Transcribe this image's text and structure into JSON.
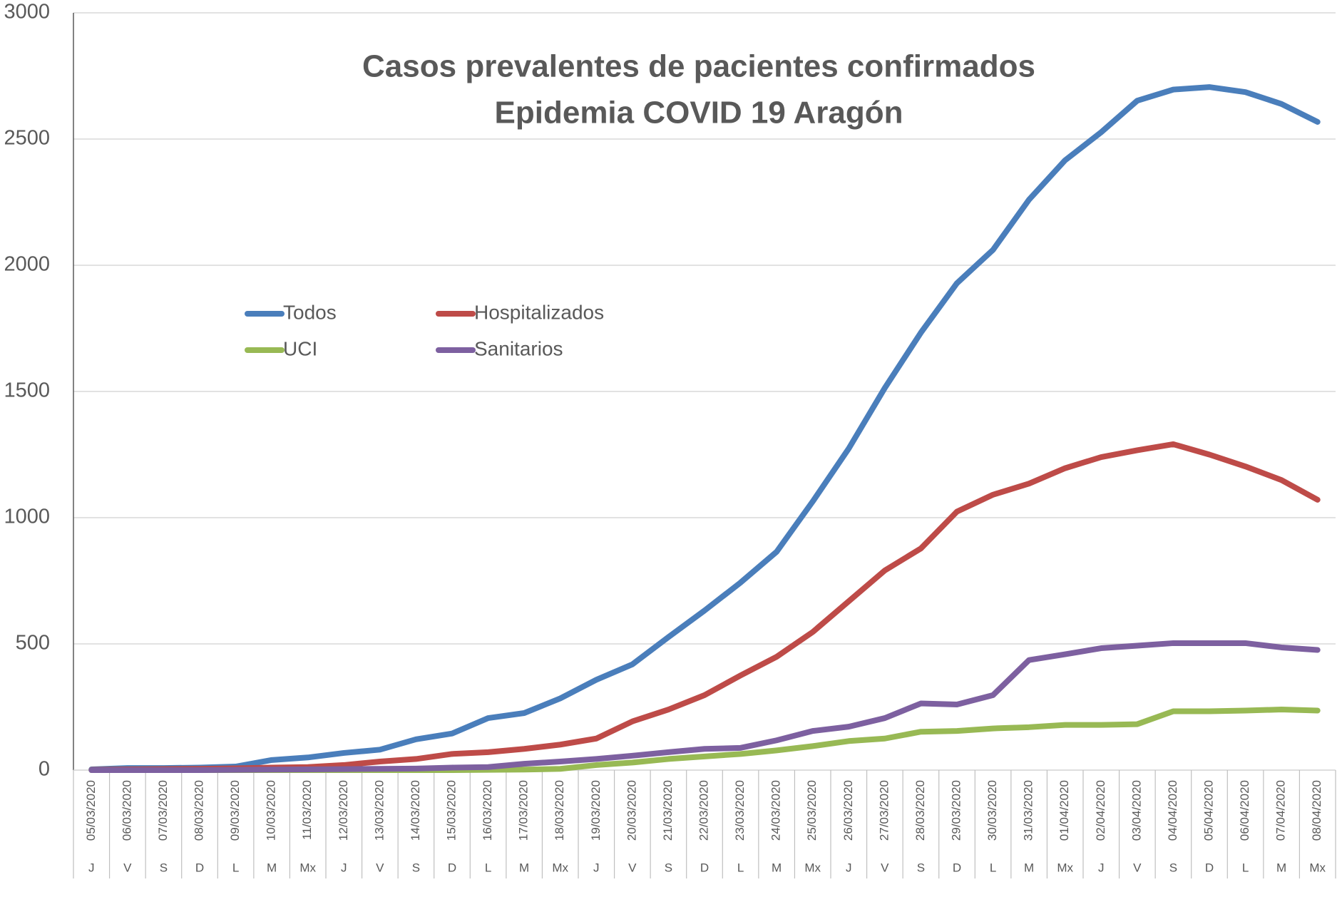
{
  "chart_data": {
    "type": "line",
    "title": "Casos prevalentes de pacientes confirmados",
    "subtitle": "Epidemia COVID 19 Aragón",
    "categories": [
      "05/03/2020",
      "06/03/2020",
      "07/03/2020",
      "08/03/2020",
      "09/03/2020",
      "10/03/2020",
      "11/03/2020",
      "12/03/2020",
      "13/03/2020",
      "14/03/2020",
      "15/03/2020",
      "16/03/2020",
      "17/03/2020",
      "18/03/2020",
      "19/03/2020",
      "20/03/2020",
      "21/03/2020",
      "22/03/2020",
      "23/03/2020",
      "24/03/2020",
      "25/03/2020",
      "26/03/2020",
      "27/03/2020",
      "28/03/2020",
      "29/03/2020",
      "30/03/2020",
      "31/03/2020",
      "01/04/2020",
      "02/04/2020",
      "03/04/2020",
      "04/04/2020",
      "05/04/2020",
      "06/04/2020",
      "07/04/2020",
      "08/04/2020"
    ],
    "weekdays": [
      "J",
      "V",
      "S",
      "D",
      "L",
      "M",
      "Mx",
      "J",
      "V",
      "S",
      "D",
      "L",
      "M",
      "Mx",
      "J",
      "V",
      "S",
      "D",
      "L",
      "M",
      "Mx",
      "J",
      "V",
      "S",
      "D",
      "L",
      "M",
      "Mx",
      "J",
      "V",
      "S",
      "D",
      "L",
      "M",
      "Mx"
    ],
    "series": [
      {
        "name": "Todos",
        "color": "#4a7ebb",
        "values": [
          3,
          8,
          8,
          10,
          14,
          40,
          50,
          68,
          81,
          122,
          145,
          206,
          226,
          284,
          358,
          419,
          527,
          632,
          743,
          865,
          1064,
          1274,
          1514,
          1733,
          1929,
          2061,
          2260,
          2416,
          2527,
          2652,
          2696,
          2706,
          2686,
          2639,
          2568
        ]
      },
      {
        "name": "Hospitalizados",
        "color": "#be4b48",
        "values": [
          1,
          3,
          4,
          5,
          7,
          10,
          12,
          20,
          34,
          44,
          64,
          71,
          84,
          101,
          125,
          193,
          240,
          297,
          375,
          449,
          547,
          669,
          791,
          878,
          1024,
          1091,
          1135,
          1196,
          1240,
          1267,
          1291,
          1250,
          1203,
          1149,
          1071
        ]
      },
      {
        "name": "UCI",
        "color": "#98b954",
        "values": [
          0,
          0,
          0,
          0,
          0,
          0,
          0,
          0,
          0,
          0,
          0,
          1,
          2,
          5,
          20,
          30,
          44,
          54,
          64,
          78,
          95,
          115,
          125,
          152,
          155,
          165,
          170,
          179,
          179,
          182,
          233,
          233,
          236,
          240,
          236
        ]
      },
      {
        "name": "Sanitarios",
        "color": "#7d60a0",
        "values": [
          0,
          0,
          0,
          0,
          1,
          2,
          3,
          4,
          5,
          6,
          10,
          12,
          25,
          34,
          44,
          57,
          71,
          84,
          88,
          118,
          155,
          172,
          206,
          264,
          260,
          297,
          436,
          459,
          483,
          493,
          503,
          503,
          503,
          486,
          476
        ]
      }
    ],
    "ylim": [
      0,
      3000
    ],
    "yticks": [
      0,
      500,
      1000,
      1500,
      2000,
      2500,
      3000
    ],
    "grid": true
  }
}
